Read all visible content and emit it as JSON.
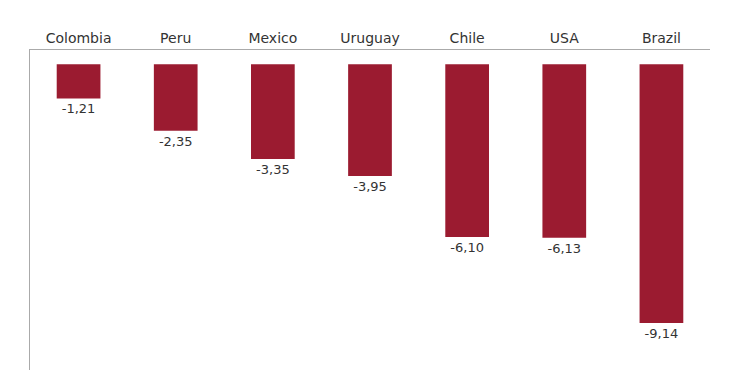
{
  "chart_data": {
    "type": "bar",
    "categories": [
      "Colombia",
      "Peru",
      "Mexico",
      "Uruguay",
      "Chile",
      "USA",
      "Brazil"
    ],
    "values": [
      -1.21,
      -2.35,
      -3.35,
      -3.95,
      -6.1,
      -6.13,
      -9.14
    ],
    "value_labels": [
      "-1,21",
      "-2,35",
      "-3,35",
      "-3,95",
      "-6,10",
      "-6,13",
      "-9,14"
    ],
    "color": "#9B1B30",
    "ylim": [
      -10.8,
      0.5
    ],
    "data_labels": true,
    "tick_labels": "x",
    "grid": false
  }
}
